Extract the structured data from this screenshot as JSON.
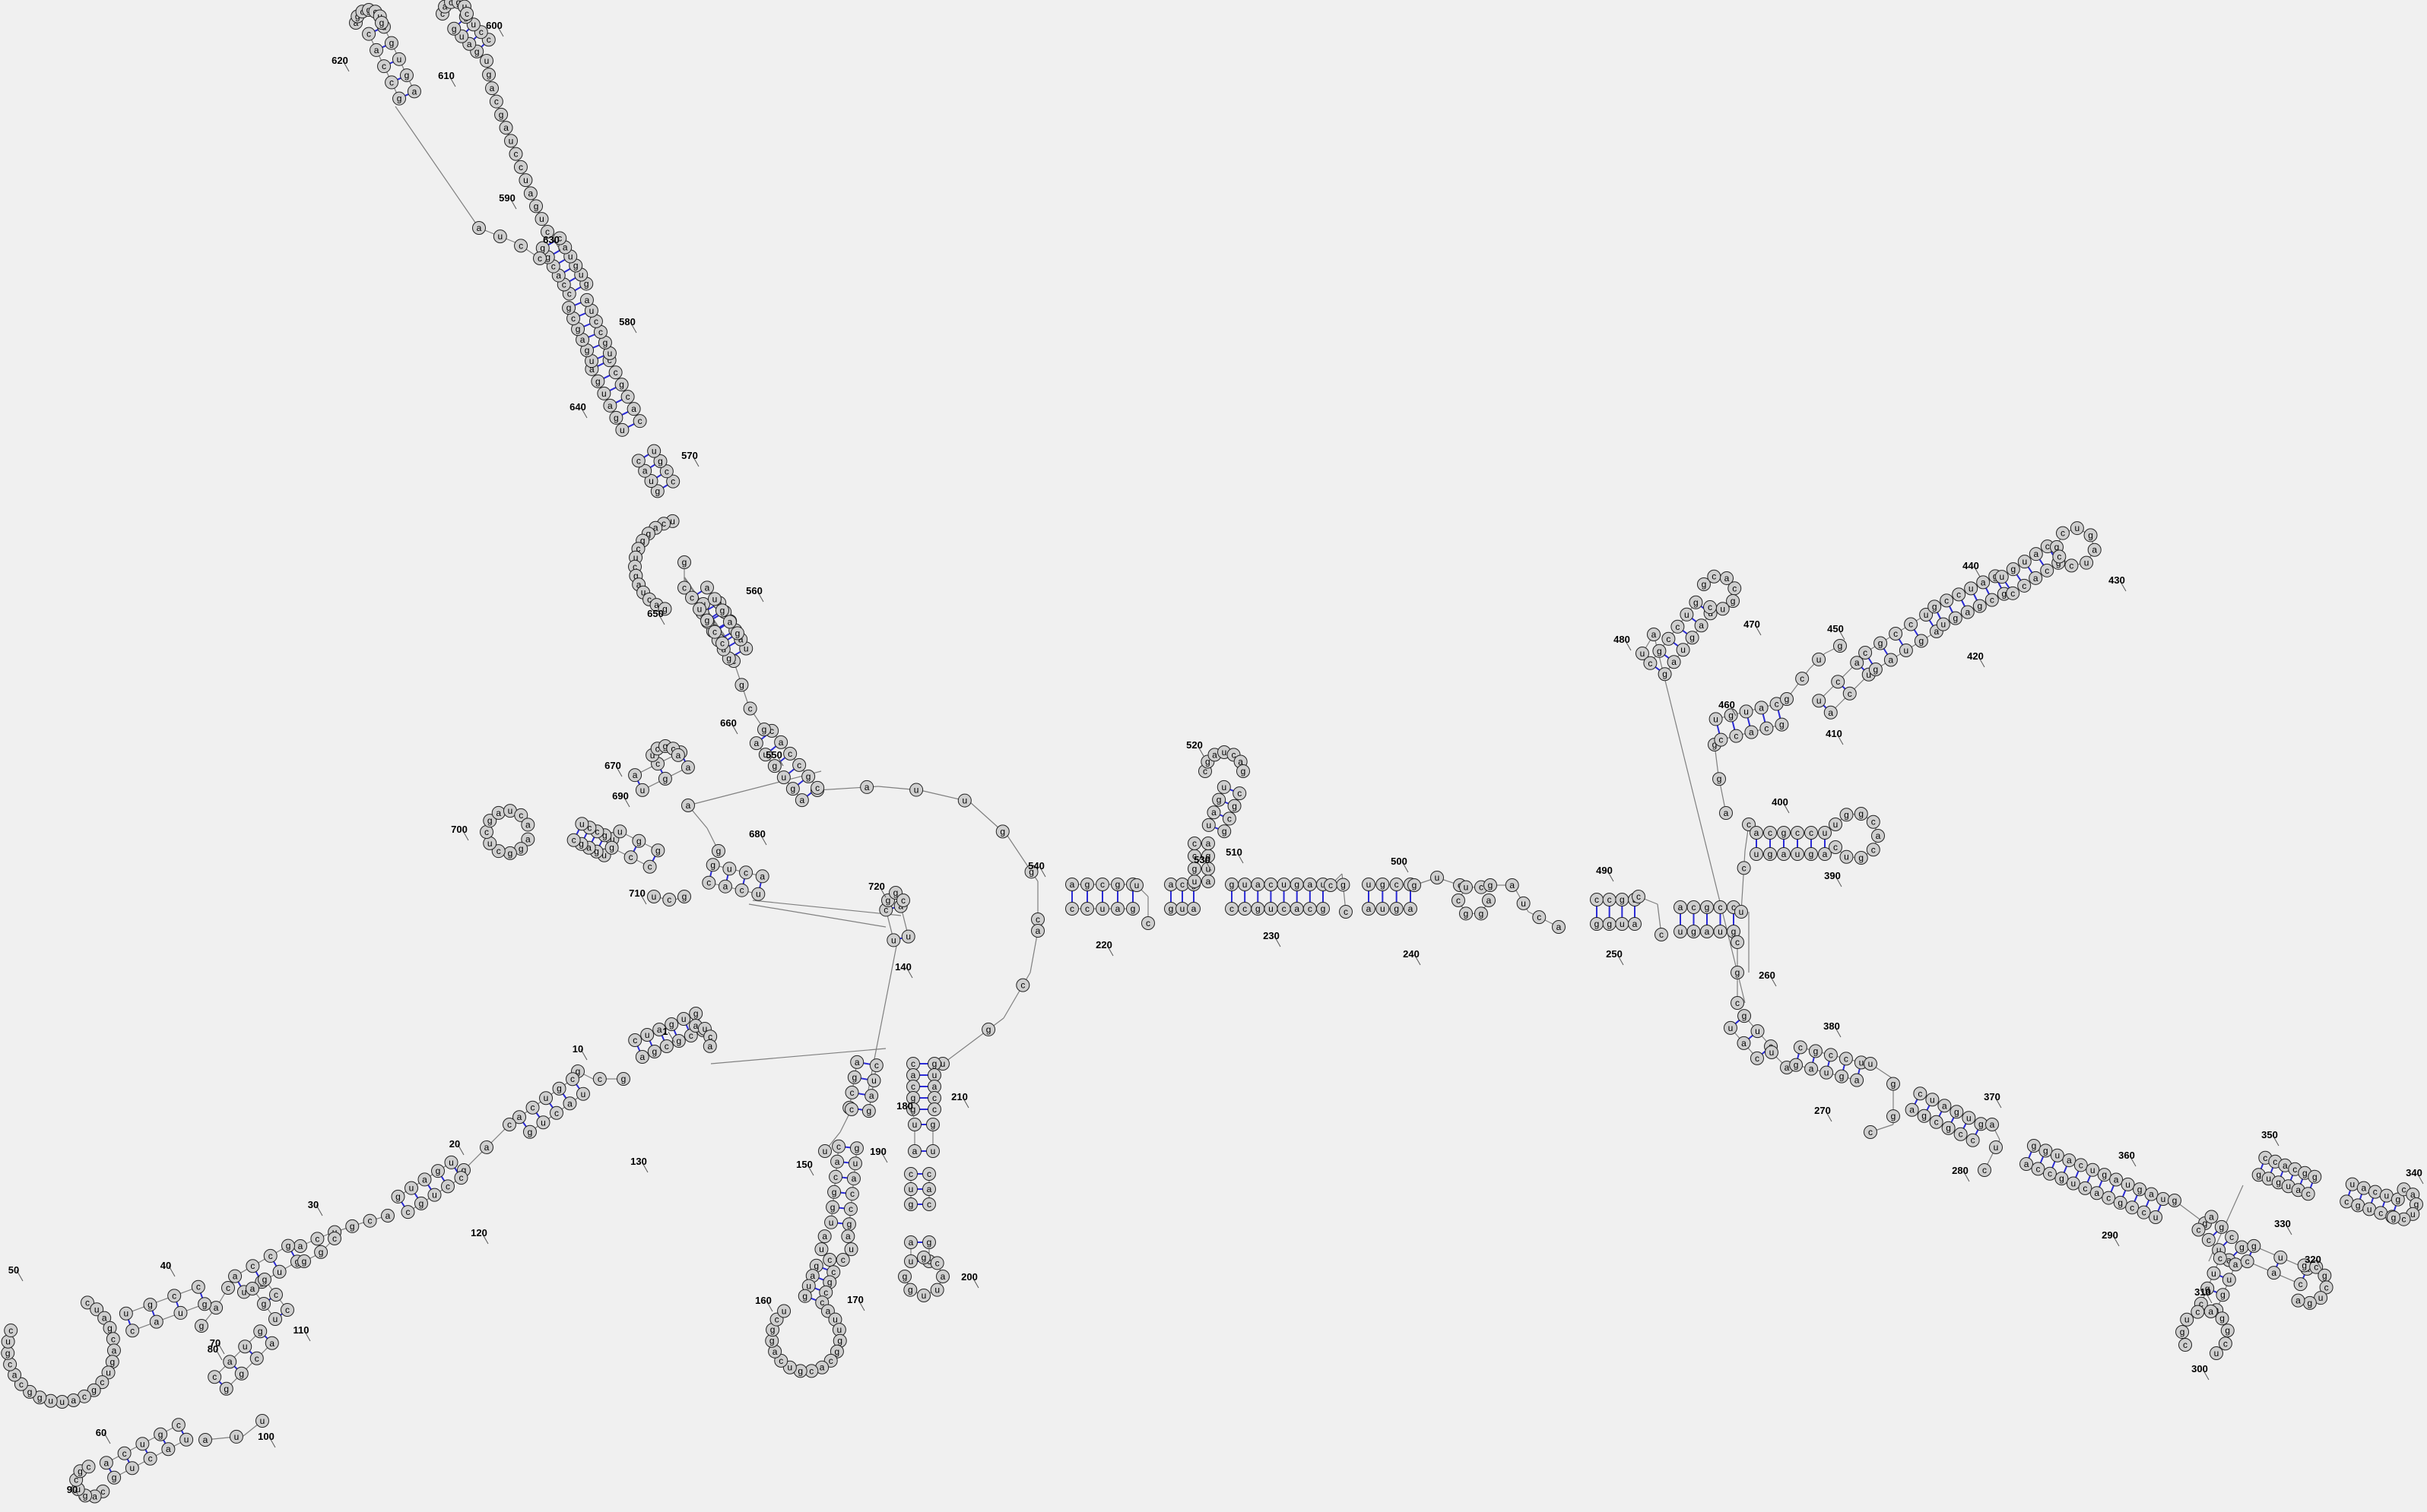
{
  "diagram": {
    "type": "rna-secondary-structure",
    "colors": {
      "background": "#f0f0f0",
      "nucleotide_fill": "#cfcfcf",
      "nucleotide_stroke": "#222222",
      "backbone": "#7f7f7f",
      "base_pair": "#2b2bd6",
      "label": "#000000"
    },
    "position_labels": [
      "1",
      "10",
      "20",
      "30",
      "40",
      "50",
      "60",
      "70",
      "80",
      "90",
      "100",
      "110",
      "120",
      "130",
      "140",
      "150",
      "160",
      "170",
      "180",
      "190",
      "200",
      "210",
      "220",
      "230",
      "240",
      "250",
      "260",
      "270",
      "280",
      "290",
      "300",
      "310",
      "320",
      "330",
      "340",
      "350",
      "360",
      "370",
      "380",
      "390",
      "400",
      "410",
      "420",
      "430",
      "440",
      "450",
      "460",
      "470",
      "480",
      "490",
      "500",
      "510",
      "520",
      "530",
      "540",
      "550",
      "560",
      "570",
      "580",
      "590",
      "600",
      "610",
      "620",
      "630",
      "640",
      "650",
      "660",
      "670",
      "680",
      "690",
      "700",
      "710",
      "720"
    ]
  }
}
